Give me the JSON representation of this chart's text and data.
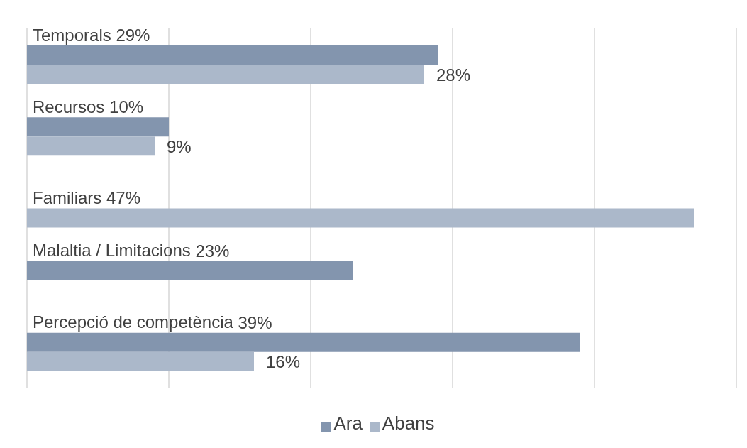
{
  "chart_data": {
    "type": "bar",
    "orientation": "horizontal",
    "categories": [
      "Temporals",
      "Recursos",
      "Familiars",
      "Malaltia / Limitacions",
      "Percepció de competència"
    ],
    "series": [
      {
        "name": "Ara",
        "color": "#8395ae",
        "values": [
          29,
          10,
          null,
          23,
          39
        ],
        "value_labels": [
          "29%",
          "10%",
          null,
          "23%",
          "39%"
        ]
      },
      {
        "name": "Abans",
        "color": "#abb8ca",
        "values": [
          28,
          9,
          47,
          null,
          16
        ],
        "value_labels": [
          "28%",
          "9%",
          "47%",
          null,
          "16%"
        ]
      }
    ],
    "xlim": [
      0,
      50
    ],
    "xticks": [
      {
        "value": 0,
        "label": null
      },
      {
        "value": 10,
        "label": null
      },
      {
        "value": 20,
        "label": null
      },
      {
        "value": 30,
        "label": null
      },
      {
        "value": 40,
        "label": null
      },
      {
        "value": 50,
        "label": null
      }
    ],
    "tick_labels": "y",
    "grid": "x",
    "legend": "bottom"
  }
}
